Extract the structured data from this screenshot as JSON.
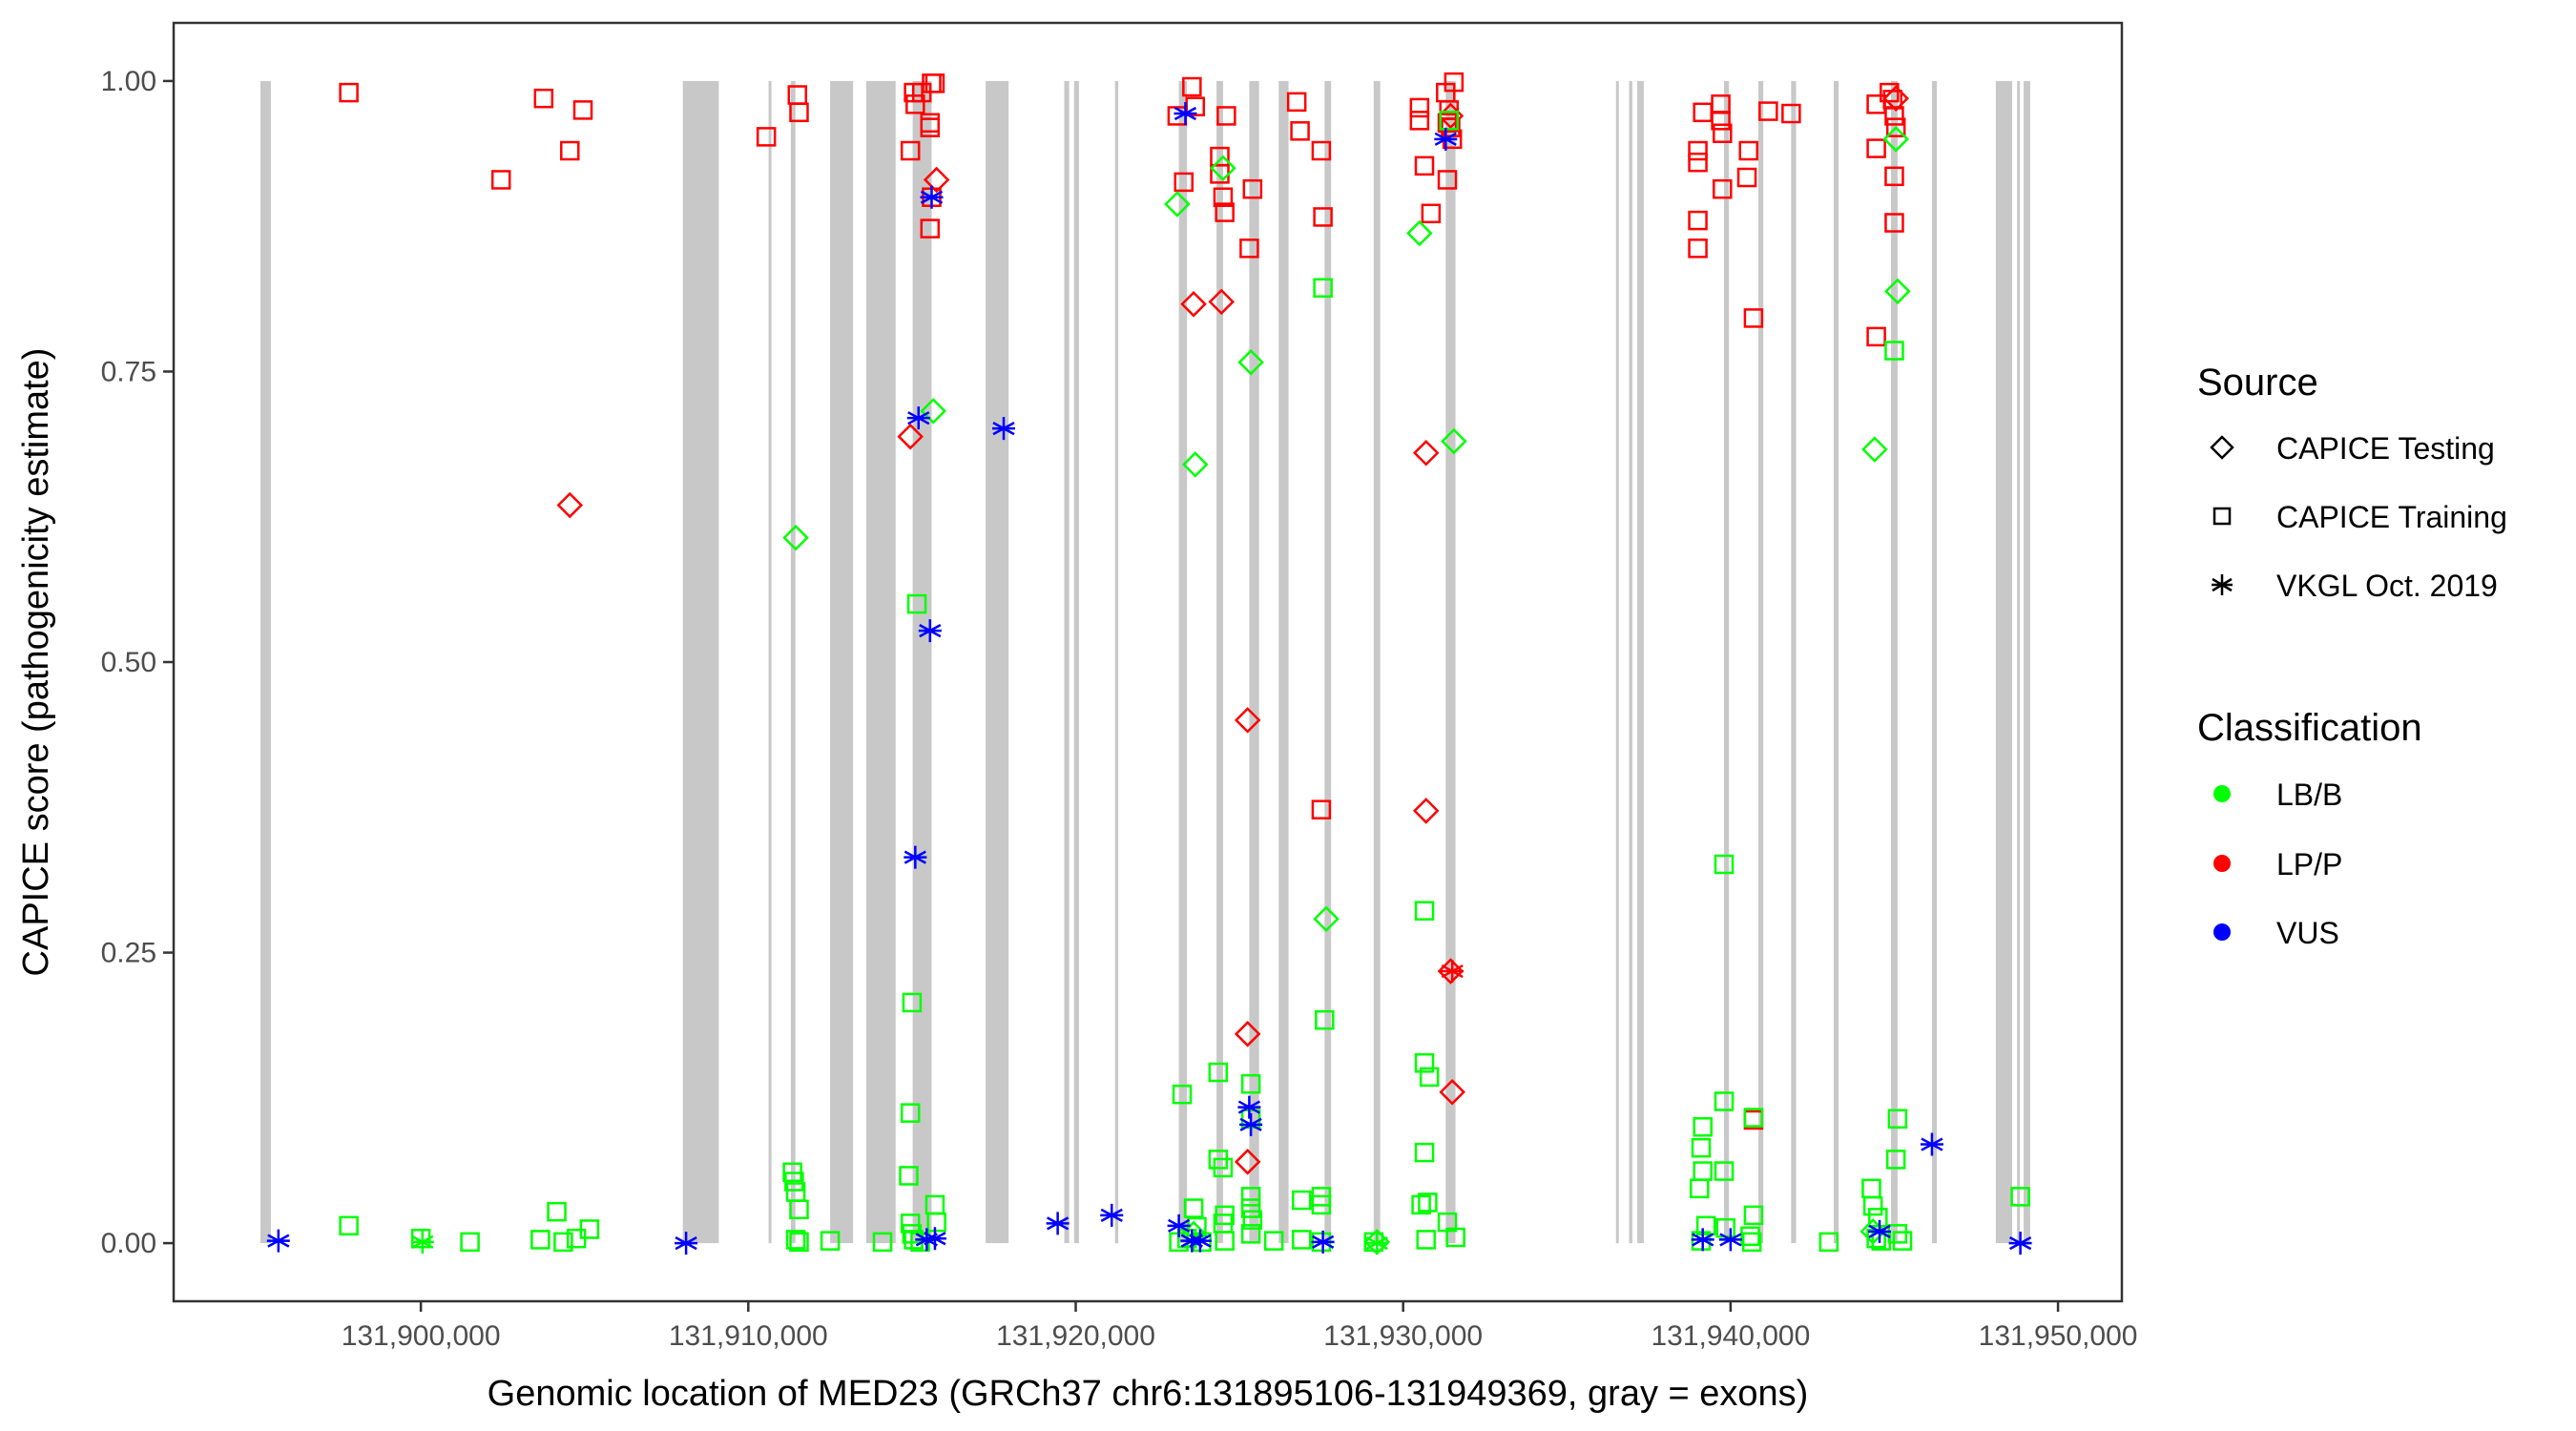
{
  "chart_data": {
    "type": "scatter",
    "title": "",
    "xlabel": "Genomic location of MED23 (GRCh37 chr6:131895106-131949369, gray = exons)",
    "ylabel": "CAPICE score (pathogenicity estimate)",
    "xlim": [
      131892450,
      131951950
    ],
    "ylim": [
      -0.05,
      1.05
    ],
    "grid": false,
    "x_ticks": [
      131900000,
      131910000,
      131920000,
      131930000,
      131940000,
      131950000
    ],
    "x_tick_labels": [
      "131,900,000",
      "131,910,000",
      "131,920,000",
      "131,930,000",
      "131,940,000",
      "131,950,000"
    ],
    "y_ticks": [
      0,
      0.25,
      0.5,
      0.75,
      1.0
    ],
    "y_tick_labels": [
      "0.00",
      "0.25",
      "0.50",
      "0.75",
      "1.00"
    ],
    "exons": [
      [
        131895100,
        131895420
      ],
      [
        131908000,
        131909100
      ],
      [
        131910620,
        131910700
      ],
      [
        131911300,
        131911440
      ],
      [
        131912500,
        131913200
      ],
      [
        131913600,
        131914500
      ],
      [
        131915020,
        131915600
      ],
      [
        131917250,
        131917950
      ],
      [
        131919650,
        131919800
      ],
      [
        131919950,
        131920100
      ],
      [
        131921200,
        131921300
      ],
      [
        131923150,
        131923400
      ],
      [
        131924300,
        131924500
      ],
      [
        131925300,
        131925600
      ],
      [
        131926200,
        131926500
      ],
      [
        131927600,
        131927800
      ],
      [
        131929100,
        131929300
      ],
      [
        131931300,
        131931600
      ],
      [
        131936500,
        131936550
      ],
      [
        131936900,
        131937000
      ],
      [
        131937150,
        131937350
      ],
      [
        131939800,
        131939950
      ],
      [
        131940850,
        131941000
      ],
      [
        131941850,
        131942000
      ],
      [
        131943150,
        131943300
      ],
      [
        131944900,
        131945100
      ],
      [
        131946150,
        131946300
      ],
      [
        131948100,
        131948600
      ],
      [
        131948750,
        131948800
      ],
      [
        131948950,
        131949150
      ]
    ],
    "legend": {
      "source_title": "Source",
      "source": [
        {
          "label": "CAPICE Testing",
          "shape": "diamond"
        },
        {
          "label": "CAPICE Training",
          "shape": "square"
        },
        {
          "label": "VKGL Oct. 2019",
          "shape": "asterisk"
        }
      ],
      "classification_title": "Classification",
      "classification": [
        {
          "label": "LB/B",
          "color": "#00ff00"
        },
        {
          "label": "LP/P",
          "color": "#ff0000"
        },
        {
          "label": "VUS",
          "color": "#0000ff"
        }
      ],
      "placement": "right"
    },
    "colors": {
      "LB/B": "#00ff00",
      "LP/P": "#ff0000",
      "VUS": "#0000ff",
      "exon": "#c8c8c8"
    },
    "series": [
      {
        "name": "CAPICE Training / LP/P",
        "source": "CAPICE Training",
        "classification": "LP/P",
        "points": [
          [
            131897800,
            0.99
          ],
          [
            131902450,
            0.915
          ],
          [
            131903750,
            0.985
          ],
          [
            131904550,
            0.94
          ],
          [
            131904950,
            0.975
          ],
          [
            131910550,
            0.952
          ],
          [
            131911500,
            0.988
          ],
          [
            131911550,
            0.973
          ],
          [
            131914950,
            0.94
          ],
          [
            131915100,
            0.98
          ],
          [
            131915050,
            0.99
          ],
          [
            131915300,
            0.99
          ],
          [
            131915600,
            0.998
          ],
          [
            131915700,
            0.998
          ],
          [
            131915550,
            0.96
          ],
          [
            131915550,
            0.964
          ],
          [
            131915550,
            0.873
          ],
          [
            131915600,
            0.9
          ],
          [
            131923100,
            0.97
          ],
          [
            131923300,
            0.913
          ],
          [
            131923550,
            0.995
          ],
          [
            131923650,
            0.978
          ],
          [
            131924400,
            0.92
          ],
          [
            131924400,
            0.935
          ],
          [
            131924500,
            0.9
          ],
          [
            131924550,
            0.887
          ],
          [
            131924600,
            0.97
          ],
          [
            131925300,
            0.856
          ],
          [
            131925400,
            0.907
          ],
          [
            131926750,
            0.982
          ],
          [
            131926850,
            0.957
          ],
          [
            131927500,
            0.94
          ],
          [
            131927550,
            0.883
          ],
          [
            131927500,
            0.373
          ],
          [
            131930500,
            0.977
          ],
          [
            131930500,
            0.966
          ],
          [
            131930650,
            0.927
          ],
          [
            131930850,
            0.886
          ],
          [
            131931300,
            0.99
          ],
          [
            131931400,
            0.975
          ],
          [
            131931350,
            0.964
          ],
          [
            131931450,
            0.96
          ],
          [
            131931500,
            0.95
          ],
          [
            131931550,
            0.999
          ],
          [
            131931350,
            0.915
          ],
          [
            131939000,
            0.93
          ],
          [
            131939000,
            0.94
          ],
          [
            131939000,
            0.88
          ],
          [
            131939000,
            0.856
          ],
          [
            131939150,
            0.973
          ],
          [
            131939700,
            0.98
          ],
          [
            131939700,
            0.966
          ],
          [
            131939750,
            0.955
          ],
          [
            131939750,
            0.907
          ],
          [
            131940550,
            0.94
          ],
          [
            131940500,
            0.917
          ],
          [
            131940700,
            0.796
          ],
          [
            131941150,
            0.974
          ],
          [
            131941850,
            0.972
          ],
          [
            131944450,
            0.98
          ],
          [
            131944450,
            0.942
          ],
          [
            131944450,
            0.78
          ],
          [
            131944850,
            0.99
          ],
          [
            131944950,
            0.984
          ],
          [
            131945000,
            0.97
          ],
          [
            131945050,
            0.96
          ],
          [
            131945000,
            0.918
          ],
          [
            131945000,
            0.878
          ],
          [
            131940700,
            0.106
          ]
        ]
      },
      {
        "name": "CAPICE Testing / LP/P",
        "source": "CAPICE Testing",
        "classification": "LP/P",
        "points": [
          [
            131904550,
            0.635
          ],
          [
            131914950,
            0.694
          ],
          [
            131915750,
            0.915
          ],
          [
            131923600,
            0.808
          ],
          [
            131924450,
            0.81
          ],
          [
            131925250,
            0.45
          ],
          [
            131925250,
            0.18
          ],
          [
            131925250,
            0.07
          ],
          [
            131930700,
            0.68
          ],
          [
            131930700,
            0.372
          ],
          [
            131931450,
            0.234
          ],
          [
            131931500,
            0.13
          ],
          [
            131931450,
            0.97
          ],
          [
            131945050,
            0.985
          ]
        ]
      },
      {
        "name": "CAPICE Testing / LB/B",
        "source": "CAPICE Testing",
        "classification": "LB/B",
        "points": [
          [
            131911450,
            0.607
          ],
          [
            131915650,
            0.716
          ],
          [
            131923100,
            0.894
          ],
          [
            131923650,
            0.67
          ],
          [
            131924500,
            0.925
          ],
          [
            131925350,
            0.758
          ],
          [
            131927650,
            0.279
          ],
          [
            131930500,
            0.869
          ],
          [
            131931550,
            0.69
          ],
          [
            131944400,
            0.683
          ],
          [
            131945050,
            0.95
          ],
          [
            131945100,
            0.819
          ],
          [
            131923600,
            0.008
          ],
          [
            131929200,
            0.001
          ],
          [
            131944350,
            0.01
          ]
        ]
      },
      {
        "name": "CAPICE Training / LB/B",
        "source": "CAPICE Training",
        "classification": "LB/B",
        "points": [
          [
            131897800,
            0.015
          ],
          [
            131900000,
            0.004
          ],
          [
            131901500,
            0.001
          ],
          [
            131903650,
            0.003
          ],
          [
            131904150,
            0.027
          ],
          [
            131904350,
            0.001
          ],
          [
            131904750,
            0.004
          ],
          [
            131905150,
            0.012
          ],
          [
            131911350,
            0.061
          ],
          [
            131911400,
            0.053
          ],
          [
            131911450,
            0.044
          ],
          [
            131911550,
            0.029
          ],
          [
            131911450,
            0.003
          ],
          [
            131911550,
            0.001
          ],
          [
            131912500,
            0.002
          ],
          [
            131914100,
            0.001
          ],
          [
            131915000,
            0.207
          ],
          [
            131915150,
            0.55
          ],
          [
            131914950,
            0.112
          ],
          [
            131914900,
            0.058
          ],
          [
            131914950,
            0.017
          ],
          [
            131915000,
            0.008
          ],
          [
            131915050,
            0.003
          ],
          [
            131915250,
            0.001
          ],
          [
            131915700,
            0.033
          ],
          [
            131915750,
            0.018
          ],
          [
            131923250,
            0.128
          ],
          [
            131923600,
            0.03
          ],
          [
            131923700,
            0.014
          ],
          [
            131923400,
            0.004
          ],
          [
            131923150,
            0.001
          ],
          [
            131923850,
            0.001
          ],
          [
            131924350,
            0.147
          ],
          [
            131924350,
            0.072
          ],
          [
            131924500,
            0.065
          ],
          [
            131924550,
            0.024
          ],
          [
            131924500,
            0.017
          ],
          [
            131924550,
            0.002
          ],
          [
            131925350,
            0.137
          ],
          [
            131925350,
            0.107
          ],
          [
            131925350,
            0.04
          ],
          [
            131925350,
            0.03
          ],
          [
            131925400,
            0.02
          ],
          [
            131925350,
            0.008
          ],
          [
            131926050,
            0.002
          ],
          [
            131927550,
            0.822
          ],
          [
            131927600,
            0.192
          ],
          [
            131926900,
            0.037
          ],
          [
            131927500,
            0.04
          ],
          [
            131927500,
            0.033
          ],
          [
            131926900,
            0.003
          ],
          [
            131927500,
            0.001
          ],
          [
            131929100,
            0.001
          ],
          [
            131930650,
            0.286
          ],
          [
            131930650,
            0.155
          ],
          [
            131930800,
            0.143
          ],
          [
            131930650,
            0.078
          ],
          [
            131930750,
            0.035
          ],
          [
            131930550,
            0.033
          ],
          [
            131931350,
            0.018
          ],
          [
            131930700,
            0.003
          ],
          [
            131931600,
            0.005
          ],
          [
            131931400,
            0.966
          ],
          [
            131939150,
            0.1
          ],
          [
            131939100,
            0.082
          ],
          [
            131939150,
            0.062
          ],
          [
            131939050,
            0.047
          ],
          [
            131939250,
            0.015
          ],
          [
            131939100,
            0.002
          ],
          [
            131939800,
            0.326
          ],
          [
            131939800,
            0.122
          ],
          [
            131939800,
            0.062
          ],
          [
            131939850,
            0.013
          ],
          [
            131940700,
            0.108
          ],
          [
            131940700,
            0.024
          ],
          [
            131940600,
            0.006
          ],
          [
            131940650,
            0.001
          ],
          [
            131943000,
            0.001
          ],
          [
            131944300,
            0.047
          ],
          [
            131944350,
            0.032
          ],
          [
            131944500,
            0.022
          ],
          [
            131944450,
            0.004
          ],
          [
            131945000,
            0.768
          ],
          [
            131945100,
            0.107
          ],
          [
            131945050,
            0.072
          ],
          [
            131945100,
            0.008
          ],
          [
            131944600,
            0.002
          ],
          [
            131945250,
            0.002
          ],
          [
            131948850,
            0.04
          ]
        ]
      },
      {
        "name": "VKGL Oct. 2019 / VUS",
        "source": "VKGL Oct. 2019",
        "classification": "VUS",
        "points": [
          [
            131895650,
            0.002
          ],
          [
            131908100,
            0.0
          ],
          [
            131915200,
            0.71
          ],
          [
            131915100,
            0.332
          ],
          [
            131915550,
            0.527
          ],
          [
            131915600,
            0.9
          ],
          [
            131915450,
            0.003
          ],
          [
            131915700,
            0.004
          ],
          [
            131917800,
            0.701
          ],
          [
            131919450,
            0.017
          ],
          [
            131921100,
            0.024
          ],
          [
            131923350,
            0.972
          ],
          [
            131923150,
            0.015
          ],
          [
            131923550,
            0.002
          ],
          [
            131923800,
            0.002
          ],
          [
            131925300,
            0.117
          ],
          [
            131925350,
            0.102
          ],
          [
            131927550,
            0.001
          ],
          [
            131931300,
            0.95
          ],
          [
            131939150,
            0.003
          ],
          [
            131940000,
            0.003
          ],
          [
            131944550,
            0.01
          ],
          [
            131946150,
            0.085
          ],
          [
            131948850,
            0.0
          ]
        ]
      },
      {
        "name": "VKGL Oct. 2019 / LB/B",
        "source": "VKGL Oct. 2019",
        "classification": "LB/B",
        "points": [
          [
            131900050,
            0.001
          ],
          [
            131929200,
            0.0
          ]
        ]
      },
      {
        "name": "VKGL Oct. 2019 / LP/P",
        "source": "VKGL Oct. 2019",
        "classification": "LP/P",
        "points": [
          [
            131931500,
            0.234
          ]
        ]
      }
    ]
  }
}
